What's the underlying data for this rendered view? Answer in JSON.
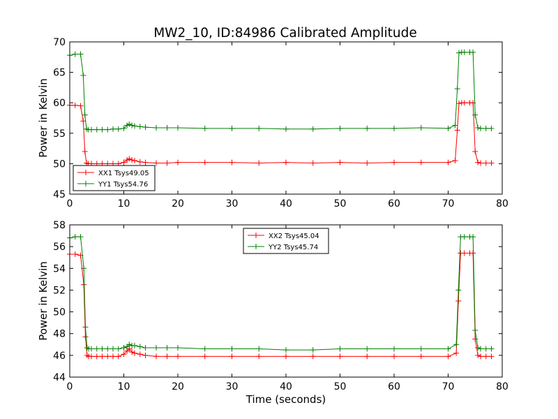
{
  "figure": {
    "title": "MW2_10, ID:84986 Calibrated Amplitude",
    "xlabel": "Time (seconds)"
  },
  "chart_data": [
    {
      "type": "line",
      "ylabel": "Power in Kelvin",
      "xlim": [
        0,
        80
      ],
      "ylim": [
        45,
        70
      ],
      "xticks": [
        "0",
        "10",
        "20",
        "30",
        "40",
        "50",
        "60",
        "70",
        "80"
      ],
      "yticks": [
        "45",
        "50",
        "55",
        "60",
        "65",
        "70"
      ],
      "grid": false,
      "legend_position": "lower-left",
      "series": [
        {
          "name": "XX1 Tsys49.05",
          "color": "#ff0000",
          "marker": "plus",
          "x": [
            0,
            1,
            2,
            2.5,
            2.8,
            3.1,
            3.4,
            4,
            5,
            6,
            7,
            8,
            9,
            10,
            10.6,
            11,
            11.5,
            12,
            13,
            14,
            16,
            18,
            20,
            25,
            30,
            35,
            40,
            45,
            50,
            55,
            60,
            65,
            70,
            71.3,
            71.7,
            72,
            72.5,
            73,
            74,
            74.6,
            75,
            75.5,
            76,
            77,
            78
          ],
          "y": [
            59.6,
            59.6,
            59.5,
            57,
            52,
            50.1,
            50,
            50,
            50,
            50,
            50,
            50,
            50,
            50.2,
            50.6,
            50.8,
            50.6,
            50.5,
            50.3,
            50.2,
            50.1,
            50.1,
            50.2,
            50.2,
            50.2,
            50.1,
            50.2,
            50.1,
            50.2,
            50.1,
            50.2,
            50.2,
            50.2,
            50.5,
            55.5,
            59.9,
            60,
            60,
            60,
            60,
            52,
            50.2,
            50.1,
            50.1,
            50.1
          ]
        },
        {
          "name": "YY1 Tsys54.76",
          "color": "#008000",
          "marker": "plus",
          "x": [
            0,
            1,
            2,
            2.5,
            2.8,
            3.1,
            3.4,
            4,
            5,
            6,
            7,
            8,
            9,
            10,
            10.6,
            11,
            11.5,
            12,
            13,
            14,
            16,
            18,
            20,
            25,
            30,
            35,
            40,
            45,
            50,
            55,
            60,
            65,
            70,
            71.3,
            71.7,
            72,
            72.5,
            73,
            74,
            74.6,
            75,
            75.5,
            76,
            77,
            78
          ],
          "y": [
            67.8,
            68,
            68,
            64.5,
            58,
            55.7,
            55.6,
            55.6,
            55.6,
            55.6,
            55.6,
            55.7,
            55.7,
            55.8,
            56.3,
            56.5,
            56.3,
            56.2,
            56.1,
            56,
            55.9,
            55.9,
            55.9,
            55.8,
            55.8,
            55.8,
            55.7,
            55.7,
            55.8,
            55.8,
            55.8,
            55.9,
            55.8,
            56.3,
            62.3,
            68.2,
            68.3,
            68.3,
            68.3,
            68.3,
            58,
            55.9,
            55.8,
            55.8,
            55.8
          ]
        }
      ]
    },
    {
      "type": "line",
      "ylabel": "Power in Kelvin",
      "xlim": [
        0,
        80
      ],
      "ylim": [
        44,
        58
      ],
      "xticks": [
        "0",
        "10",
        "20",
        "30",
        "40",
        "50",
        "60",
        "70",
        "80"
      ],
      "yticks": [
        "44",
        "46",
        "48",
        "50",
        "52",
        "54",
        "56",
        "58"
      ],
      "grid": false,
      "legend_position": "top-center",
      "series": [
        {
          "name": "XX2 Tsys45.04",
          "color": "#ff0000",
          "marker": "plus",
          "x": [
            0,
            1,
            2,
            2.6,
            2.9,
            3.2,
            3.5,
            4,
            5,
            6,
            7,
            8,
            9,
            10,
            10.6,
            11,
            11.5,
            12,
            13,
            14,
            16,
            18,
            20,
            25,
            30,
            35,
            40,
            45,
            50,
            55,
            60,
            65,
            70,
            71.5,
            71.9,
            72.3,
            73,
            74,
            74.6,
            75,
            75.5,
            76,
            77,
            78
          ],
          "y": [
            55.3,
            55.3,
            55.2,
            52.5,
            47.7,
            46,
            45.9,
            45.9,
            45.9,
            45.9,
            45.9,
            45.9,
            45.9,
            46.1,
            46.4,
            46.6,
            46.3,
            46.2,
            46.1,
            46,
            45.9,
            45.9,
            45.9,
            45.9,
            45.9,
            45.9,
            45.9,
            45.9,
            45.9,
            45.9,
            45.9,
            45.9,
            45.9,
            46.2,
            51,
            55.4,
            55.4,
            55.4,
            55.4,
            47.5,
            46,
            45.9,
            45.9,
            45.9
          ]
        },
        {
          "name": "YY2 Tsys45.74",
          "color": "#008000",
          "marker": "plus",
          "x": [
            0,
            1,
            2,
            2.6,
            2.9,
            3.2,
            3.5,
            4,
            5,
            6,
            7,
            8,
            9,
            10,
            10.6,
            11,
            11.5,
            12,
            13,
            14,
            16,
            18,
            20,
            25,
            30,
            35,
            40,
            45,
            50,
            55,
            60,
            65,
            70,
            71.5,
            71.9,
            72.3,
            73,
            74,
            74.6,
            75,
            75.5,
            76,
            77,
            78
          ],
          "y": [
            56.8,
            56.9,
            56.9,
            54,
            48.6,
            46.7,
            46.6,
            46.6,
            46.6,
            46.6,
            46.6,
            46.6,
            46.6,
            46.7,
            46.8,
            47,
            46.9,
            46.9,
            46.8,
            46.7,
            46.7,
            46.7,
            46.7,
            46.6,
            46.6,
            46.6,
            46.5,
            46.5,
            46.6,
            46.6,
            46.6,
            46.6,
            46.6,
            47,
            52,
            56.9,
            56.9,
            56.9,
            56.9,
            48.3,
            46.7,
            46.6,
            46.6,
            46.6
          ]
        }
      ]
    }
  ]
}
